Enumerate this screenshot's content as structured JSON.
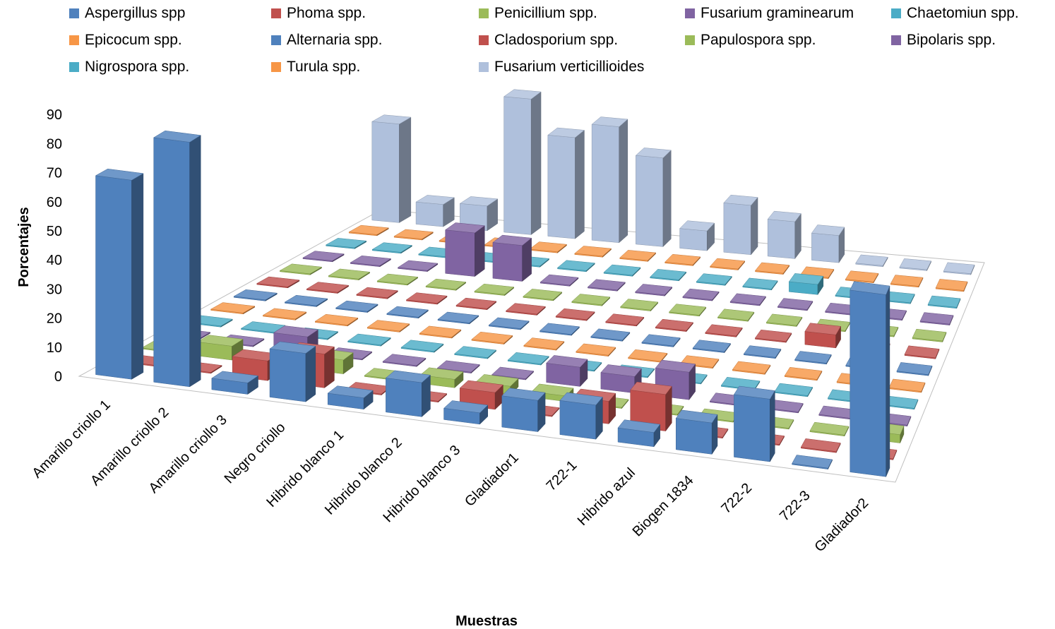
{
  "chart_data": {
    "type": "bar",
    "subtype": "3d-column",
    "ylabel": "Porcentajes",
    "xlabel": "Muestras",
    "ylim": [
      0,
      90
    ],
    "yticks": [
      0,
      10,
      20,
      30,
      40,
      50,
      60,
      70,
      80,
      90
    ],
    "legend_position": "top",
    "categories": [
      "Amarillo criollo 1",
      "Amarillo criollo 2",
      "Amarillo criollo 3",
      "Negro criollo",
      "Hibrido blanco 1",
      "Hibrido blanco 2",
      "Hibrido blanco 3",
      "Gladiador1",
      "722-1",
      "Hibrido azul",
      "Biogen 1834",
      "722-2",
      "722-3",
      "Gladiador2"
    ],
    "series": [
      {
        "name": "Aspergillus spp",
        "color": "#4F81BD",
        "values": [
          70,
          86,
          4,
          17,
          4,
          12,
          4,
          11,
          12,
          5,
          11,
          22,
          0,
          64
        ]
      },
      {
        "name": "Phoma spp.",
        "color": "#C0504D",
        "values": [
          0,
          0,
          7,
          12,
          0,
          0,
          6,
          0,
          8,
          13,
          0,
          0,
          0,
          0
        ]
      },
      {
        "name": "Penicillium spp.",
        "color": "#9BBB59",
        "values": [
          0,
          5,
          0,
          5,
          0,
          3,
          3,
          2,
          0,
          0,
          0,
          0,
          0,
          3
        ]
      },
      {
        "name": "Fusarium graminearum",
        "color": "#8064A2",
        "values": [
          0,
          0,
          6,
          0,
          0,
          0,
          0,
          7,
          6,
          10,
          0,
          0,
          0,
          0
        ]
      },
      {
        "name": "Chaetomiun spp.",
        "color": "#4BACC6",
        "values": [
          0,
          0,
          0,
          0,
          0,
          0,
          0,
          0,
          0,
          0,
          0,
          0,
          0,
          0
        ]
      },
      {
        "name": "Epicocum spp.",
        "color": "#F79646",
        "values": [
          0,
          0,
          0,
          0,
          0,
          0,
          0,
          0,
          0,
          0,
          0,
          0,
          0,
          0
        ]
      },
      {
        "name": "Alternaria spp.",
        "color": "#4F81BD",
        "values": [
          0,
          0,
          0,
          0,
          0,
          0,
          0,
          0,
          0,
          0,
          0,
          0,
          0,
          0
        ]
      },
      {
        "name": "Cladosporium spp.",
        "color": "#C0504D",
        "values": [
          0,
          0,
          0,
          0,
          0,
          0,
          0,
          0,
          0,
          0,
          0,
          5,
          0,
          0
        ]
      },
      {
        "name": "Papulospora spp.",
        "color": "#9BBB59",
        "values": [
          0,
          0,
          0,
          0,
          0,
          0,
          0,
          0,
          0,
          0,
          0,
          0,
          0,
          0
        ]
      },
      {
        "name": "Bipolaris spp.",
        "color": "#8064A2",
        "values": [
          0,
          0,
          0,
          17,
          14,
          0,
          0,
          0,
          0,
          0,
          0,
          0,
          0,
          0
        ]
      },
      {
        "name": "Nigrospora spp.",
        "color": "#4BACC6",
        "values": [
          0,
          0,
          0,
          0,
          0,
          0,
          0,
          0,
          0,
          0,
          4,
          0,
          0,
          0
        ]
      },
      {
        "name": "Turula spp.",
        "color": "#F79646",
        "values": [
          0,
          0,
          0,
          0,
          0,
          0,
          0,
          0,
          0,
          0,
          0,
          0,
          0,
          0
        ]
      },
      {
        "name": "Fusarium verticillioides",
        "color": "#AFC0DC",
        "values": [
          40,
          9,
          10,
          55,
          41,
          47,
          36,
          8,
          20,
          15,
          11,
          0,
          0,
          0
        ]
      }
    ]
  }
}
